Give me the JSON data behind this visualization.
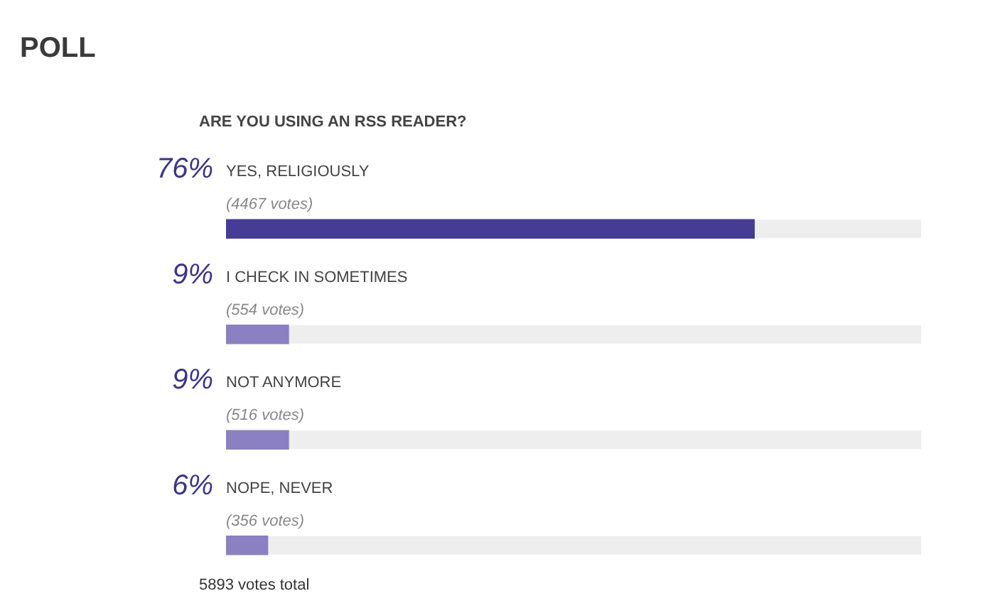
{
  "chart_data": {
    "type": "bar",
    "orientation": "horizontal",
    "title": "POLL",
    "subtitle": "ARE YOU USING AN RSS READER?",
    "categories": [
      "YES, RELIGIOUSLY",
      "I CHECK IN SOMETIMES",
      "NOT ANYMORE",
      "NOPE, NEVER"
    ],
    "values": [
      76,
      9,
      9,
      6
    ],
    "colors": [
      "#463b95",
      "#8a80c2",
      "#8a80c2",
      "#8a80c2"
    ],
    "value_labels": [
      "76%",
      "9%",
      "9%",
      "6%"
    ],
    "xlim": [
      0,
      100
    ],
    "tick_labels": "y",
    "annotations": [
      {
        "text": "(4467 votes)",
        "y": "YES, RELIGIOUSLY"
      },
      {
        "text": "(554 votes)",
        "y": "I CHECK IN SOMETIMES"
      },
      {
        "text": "(516 votes)",
        "y": "NOT ANYMORE"
      },
      {
        "text": "(356 votes)",
        "y": "NOPE, NEVER"
      },
      "5893 votes total"
    ]
  }
}
